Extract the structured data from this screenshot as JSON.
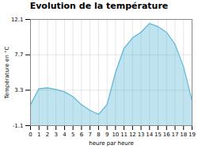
{
  "chart_data": {
    "type": "area",
    "title": "Evolution de la température",
    "xlabel": "heure par heure",
    "ylabel": "Température en °C",
    "x": [
      0,
      1,
      2,
      3,
      4,
      5,
      6,
      7,
      8,
      9,
      10,
      11,
      12,
      13,
      14,
      15,
      16,
      17,
      18,
      19
    ],
    "values": [
      1.5,
      3.5,
      3.6,
      3.4,
      3.1,
      2.5,
      1.5,
      0.8,
      0.3,
      1.5,
      5.5,
      8.5,
      9.8,
      10.5,
      11.6,
      11.2,
      10.5,
      9.0,
      6.2,
      2.0
    ],
    "color": "#60b8d8",
    "xlim": [
      0,
      19
    ],
    "xticks": [
      0,
      1,
      2,
      3,
      4,
      5,
      6,
      7,
      8,
      9,
      10,
      11,
      12,
      13,
      14,
      15,
      16,
      17,
      18,
      19
    ],
    "ylim": [
      -1.1,
      12.1
    ],
    "yticks": [
      -1.1,
      3.3,
      7.7,
      12.1
    ],
    "grid": true
  }
}
